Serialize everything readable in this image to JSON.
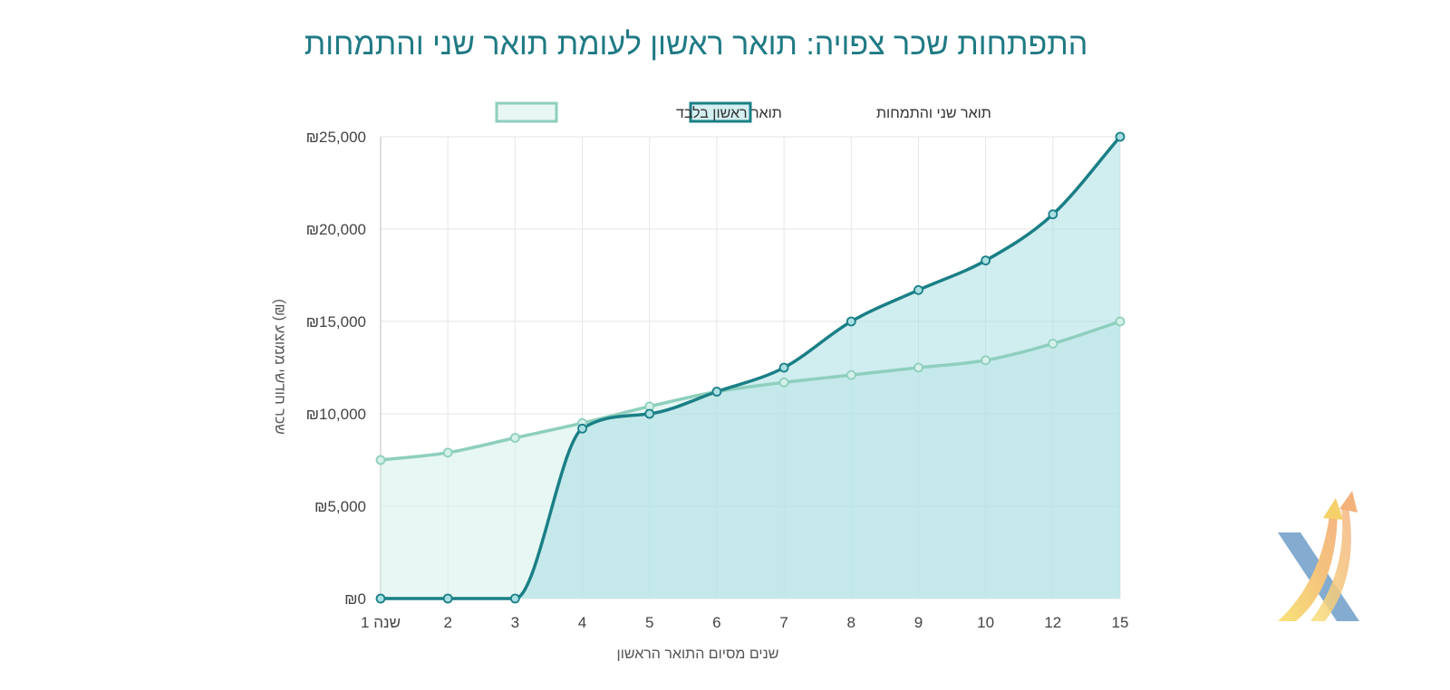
{
  "chart_data": {
    "type": "line",
    "title": "התפתחות שכר צפויה: תואר ראשון לעומת תואר שני והתמחות",
    "xlabel": "שנים מסיום התואר הראשון",
    "ylabel": "שכר חודשי ממוצע (₪)",
    "categories": [
      "שנה 1",
      "2",
      "3",
      "4",
      "5",
      "6",
      "7",
      "8",
      "9",
      "10",
      "12",
      "15"
    ],
    "ylim": [
      0,
      25000
    ],
    "yticks": [
      0,
      5000,
      10000,
      15000,
      20000,
      25000
    ],
    "ytick_labels": [
      "₪0",
      "₪5,000",
      "₪10,000",
      "₪15,000",
      "₪20,000",
      "₪25,000"
    ],
    "grid": true,
    "legend_position": "top",
    "series": [
      {
        "name": "תואר ראשון בלבד",
        "values": [
          7500,
          7900,
          8700,
          9500,
          10400,
          11200,
          11700,
          12100,
          12500,
          12900,
          13800,
          15000
        ],
        "line_color": "#8ecfbd",
        "fill_color": "#d4f0e9"
      },
      {
        "name": "תואר שני והתמחות",
        "values": [
          0,
          0,
          0,
          9200,
          10000,
          11200,
          12500,
          15000,
          16700,
          18300,
          20800,
          25000
        ],
        "line_color": "#1a7f86",
        "fill_color": "#a9dfe3"
      }
    ]
  },
  "logo": {
    "name": "logo-mark",
    "colors": [
      "#f6d36b",
      "#f3b27a",
      "#7da8cf"
    ]
  }
}
